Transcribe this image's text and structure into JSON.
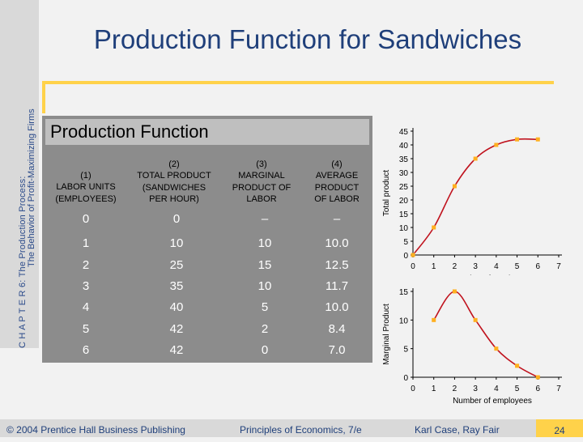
{
  "sidebar": {
    "chapter_line": "C H A P T E R 6: The Production Process:",
    "subtitle_line": "The Behavior of Profit-Maximizing Firms"
  },
  "title": "Production Function for Sandwiches",
  "table": {
    "title": "Production Function",
    "headers": [
      [
        "(1)",
        "LABOR UNITS",
        "(EMPLOYEES)"
      ],
      [
        "(2)",
        "TOTAL PRODUCT",
        "(SANDWICHES",
        "PER HOUR)"
      ],
      [
        "(3)",
        "MARGINAL",
        "PRODUCT OF",
        "LABOR"
      ],
      [
        "(4)",
        "AVERAGE",
        "PRODUCT",
        "OF LABOR"
      ]
    ],
    "rows": [
      [
        "0",
        "0",
        "–",
        "–"
      ],
      [
        "1",
        "10",
        "10",
        "10.0"
      ],
      [
        "2",
        "25",
        "15",
        "12.5"
      ],
      [
        "3",
        "35",
        "10",
        "11.7"
      ],
      [
        "4",
        "40",
        "5",
        "10.0"
      ],
      [
        "5",
        "42",
        "2",
        "8.4"
      ],
      [
        "6",
        "42",
        "0",
        "7.0"
      ]
    ]
  },
  "chart_data": [
    {
      "type": "line",
      "x": [
        0,
        1,
        2,
        3,
        4,
        5,
        6
      ],
      "y": [
        0,
        10,
        25,
        35,
        40,
        42,
        42
      ],
      "xlabel": "Number of employees",
      "ylabel": "Total product",
      "xlim": [
        0,
        7
      ],
      "ylim": [
        0,
        45
      ],
      "xticks": [
        0,
        1,
        2,
        3,
        4,
        5,
        6,
        7
      ],
      "yticks": [
        0,
        5,
        10,
        15,
        20,
        25,
        30,
        35,
        40,
        45
      ],
      "line_color": "#c0121d",
      "marker_color": "#ffb020"
    },
    {
      "type": "line",
      "x": [
        1,
        2,
        3,
        4,
        5,
        6
      ],
      "y": [
        10,
        15,
        10,
        5,
        2,
        0
      ],
      "xlabel": "Number of employees",
      "ylabel": "Marginal Product",
      "xlim": [
        0,
        7
      ],
      "ylim": [
        0,
        15
      ],
      "xticks": [
        0,
        1,
        2,
        3,
        4,
        5,
        6,
        7
      ],
      "yticks": [
        0,
        5,
        10,
        15
      ],
      "line_color": "#c0121d",
      "marker_color": "#ffb020"
    }
  ],
  "footer": {
    "copyright": "© 2004 Prentice Hall Business Publishing",
    "book": "Principles of Economics, 7/e",
    "authors": "Karl Case, Ray Fair",
    "page": "24"
  }
}
